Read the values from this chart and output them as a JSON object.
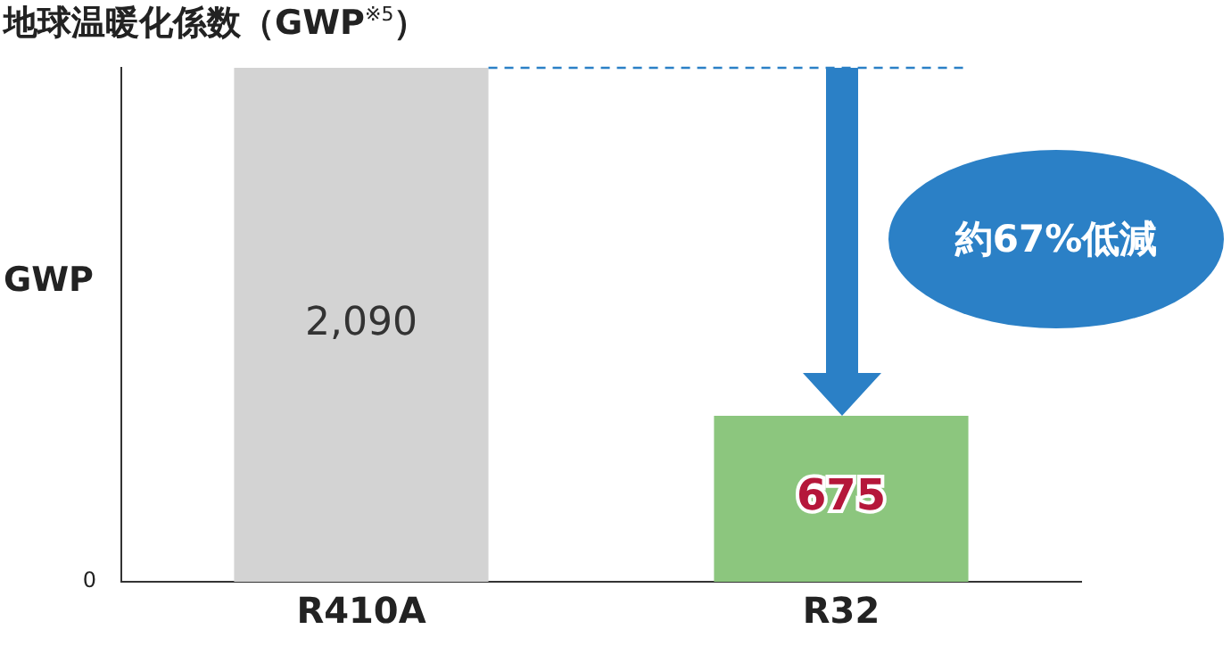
{
  "chart_data": {
    "type": "bar",
    "title": "地球温暖化係数（GWP$^{※5}$）",
    "ylabel": "GWP",
    "categories": [
      "R410A",
      "R32"
    ],
    "values": [
      2090,
      675
    ],
    "value_labels": [
      "2,090",
      "675"
    ],
    "colors": [
      "#d3d3d3",
      "#8cc67e"
    ],
    "grid": false,
    "ref_lines": [
      {
        "axis": "y",
        "value": 2090,
        "color": "#2b80c6",
        "line_style": "dashed"
      }
    ],
    "annotations": [
      "0",
      "約67%低減"
    ]
  }
}
